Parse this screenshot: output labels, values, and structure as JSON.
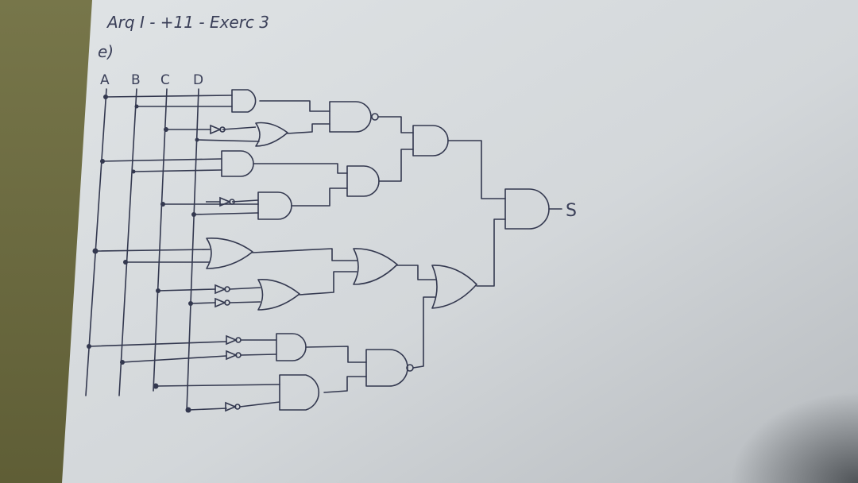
{
  "header": {
    "title": "Arq I - +11 - Exerc 3",
    "item": "e)"
  },
  "inputs": [
    "A",
    "B",
    "C",
    "D"
  ],
  "output": "S"
}
